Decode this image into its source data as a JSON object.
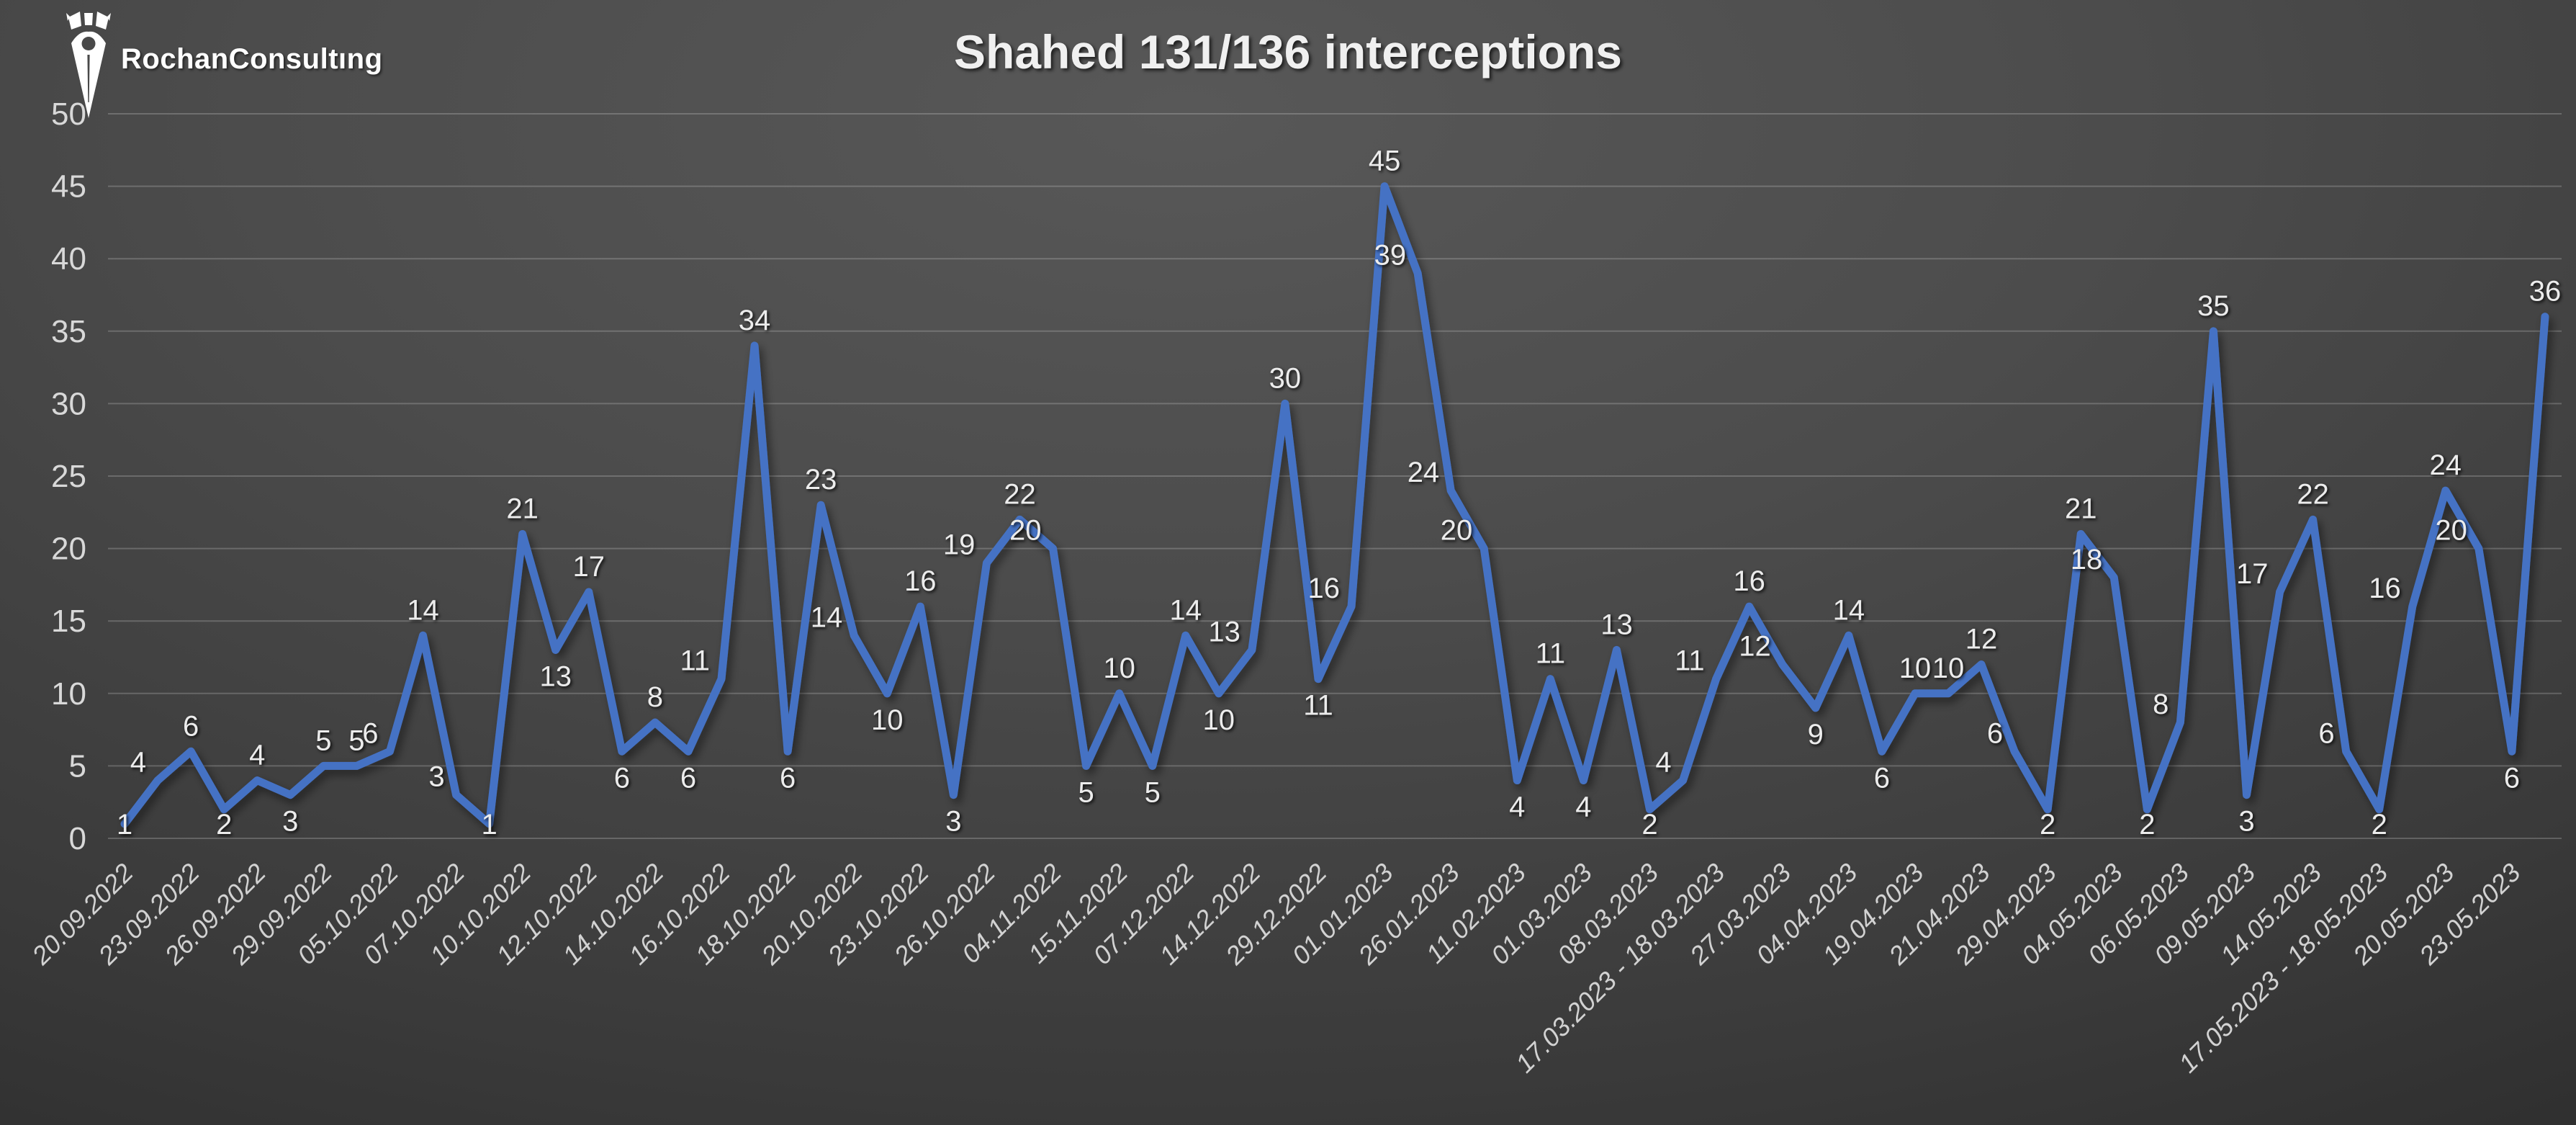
{
  "logo": {
    "text": "RochanConsultıng"
  },
  "chart_data": {
    "type": "line",
    "title": "Shahed 131/136 interceptions",
    "xlabel": "",
    "ylabel": "",
    "ylim": [
      0,
      50
    ],
    "yticks": [
      0,
      5,
      10,
      15,
      20,
      25,
      30,
      35,
      40,
      45,
      50
    ],
    "grid": "horizontal",
    "legend": "none",
    "series": [
      {
        "values": [
          1,
          4,
          6,
          2,
          4,
          3,
          5,
          5,
          6,
          14,
          3,
          1,
          21,
          13,
          17,
          6,
          8,
          6,
          11,
          34,
          6,
          23,
          14,
          10,
          16,
          3,
          19,
          22,
          20,
          5,
          10,
          5,
          14,
          10,
          13,
          30,
          11,
          16,
          45,
          39,
          24,
          20,
          4,
          11,
          4,
          13,
          2,
          4,
          11,
          16,
          12,
          9,
          14,
          6,
          10,
          10,
          12,
          6,
          2,
          21,
          18,
          2,
          8,
          35,
          3,
          17,
          22,
          6,
          2,
          16,
          24,
          20,
          6,
          36
        ]
      }
    ],
    "x_tick_labels": [
      "20.09.2022",
      "23.09.2022",
      "26.09.2022",
      "29.09.2022",
      "05.10.2022",
      "07.10.2022",
      "10.10.2022",
      "12.10.2022",
      "14.10.2022",
      "16.10.2022",
      "18.10.2022",
      "20.10.2022",
      "23.10.2022",
      "26.10.2022",
      "04.11.2022",
      "15.11.2022",
      "07.12.2022",
      "14.12.2022",
      "29.12.2022",
      "01.01.2023",
      "26.01.2023",
      "11.02.2023",
      "01.03.2023",
      "08.03.2023",
      "17.03.2023 - 18.03.2023",
      "27.03.2023",
      "04.04.2023",
      "19.04.2023",
      "21.04.2023",
      "29.04.2023",
      "04.05.2023",
      "06.05.2023",
      "09.05.2023",
      "14.05.2023",
      "17.05.2023 - 18.05.2023",
      "20.05.2023",
      "23.05.2023"
    ],
    "x_label_every": 2,
    "colors": {
      "line": "#4472C4",
      "data_label": "#ececec",
      "axis_label": "#d2d2d2",
      "gridline": "rgba(255,255,255,0.20)",
      "title": "#f0f0f0",
      "background_center": "#585858",
      "background_edge": "#1c1c1c",
      "logo": "#ffffff"
    }
  }
}
